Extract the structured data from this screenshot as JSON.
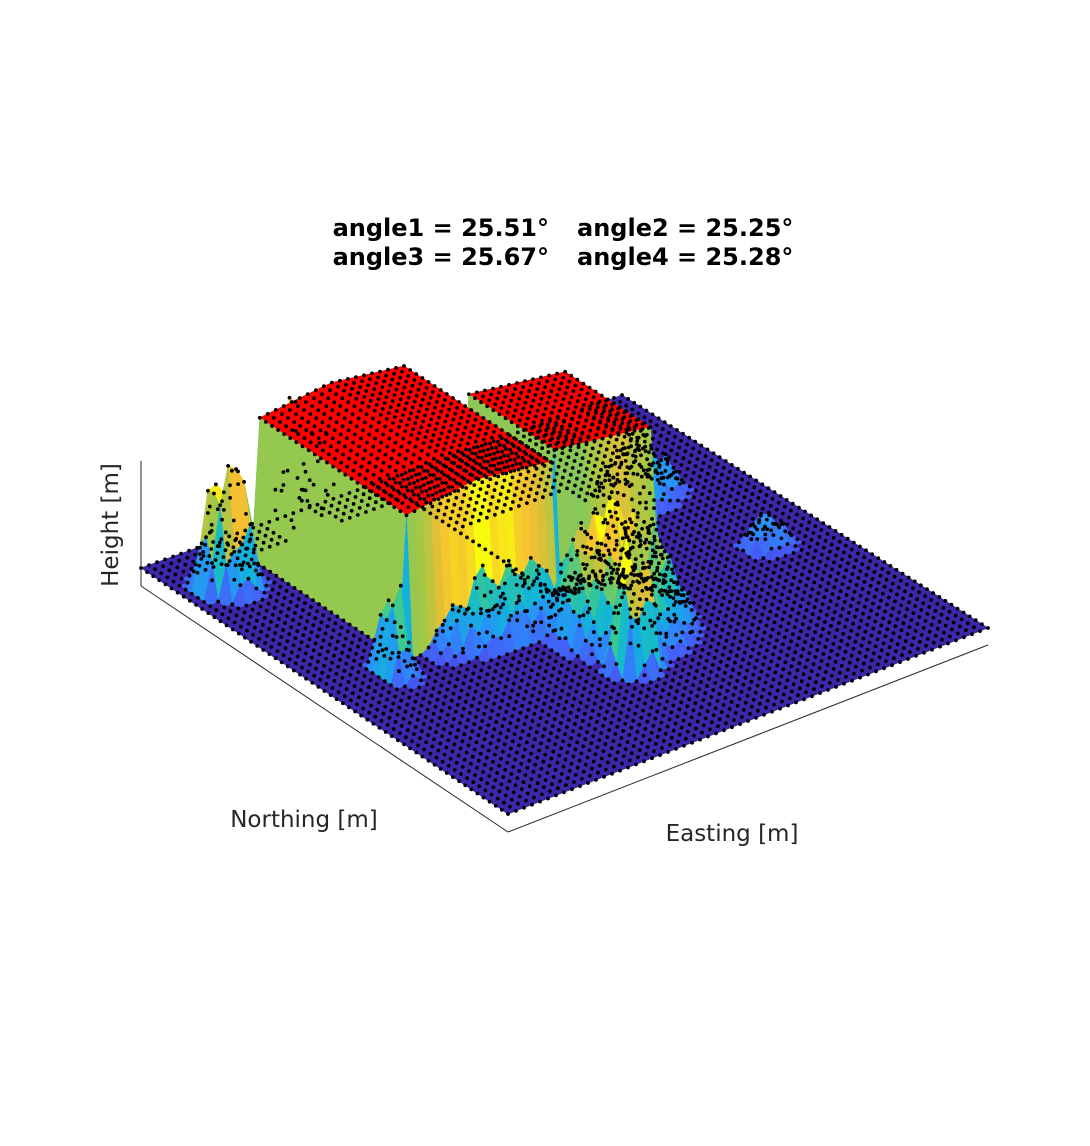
{
  "chart_data": {
    "type": "surface3d",
    "title_lines": [
      [
        "angle1 = 25.51°",
        "angle2 = 25.25°"
      ],
      [
        "angle3 = 25.67°",
        "angle4 = 25.28°"
      ]
    ],
    "xlabel": "Easting [m]",
    "ylabel": "Northing [m]",
    "zlabel": "Height [m]",
    "grid": false,
    "colormap": "parula",
    "colors": {
      "roof": "#ff0000",
      "points": "#000000",
      "ground": "#3e26a8",
      "axis": "#262626"
    },
    "surface": {
      "grid_size": 60,
      "roof_height": 0.6,
      "ground_height": 0.0,
      "vegetation_max_height": 0.55
    }
  }
}
